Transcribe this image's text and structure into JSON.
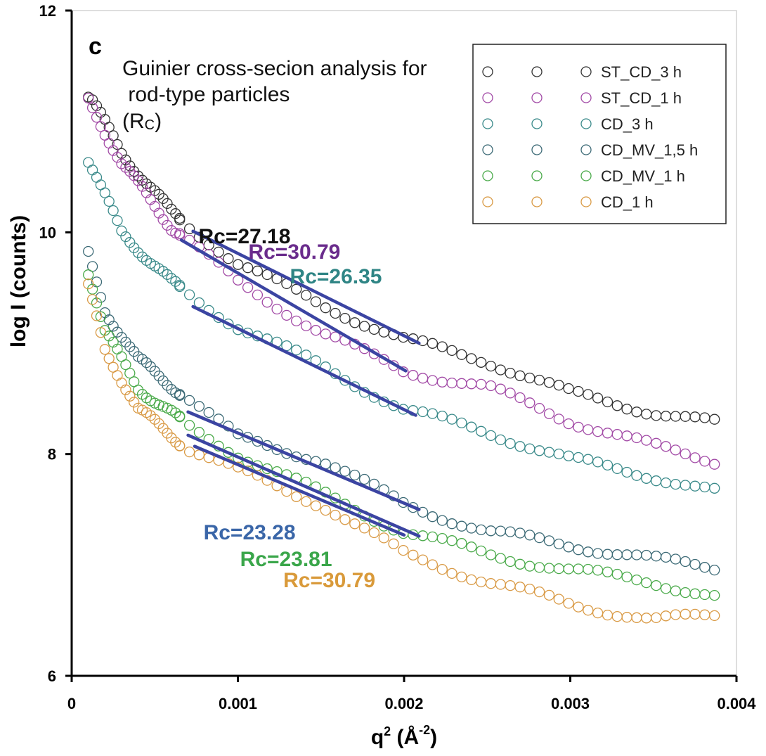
{
  "chart_data": {
    "type": "scatter",
    "panel_label": "c",
    "annotation_lines": [
      "Guinier cross-secion analysis for",
      " rod-type particles",
      "(R",
      "C",
      ")"
    ],
    "xlabel": {
      "base": "q",
      "sup": "2",
      "paren_open": " (",
      "unit": "Å",
      "sup2": "-2",
      "paren_close": ")"
    },
    "ylabel": "log I (counts)",
    "xlim": [
      0,
      0.004
    ],
    "ylim": [
      6,
      12
    ],
    "xticks": [
      0,
      0.001,
      0.002,
      0.003,
      0.004
    ],
    "xtick_labels": [
      "0",
      "0.001",
      "0.002",
      "0.003",
      "0.004"
    ],
    "yticks": [
      6,
      8,
      10,
      12
    ],
    "ytick_labels": [
      "6",
      "8",
      "10",
      "12"
    ],
    "legend_position": "top-right",
    "series": [
      {
        "name": "ST_CD_3 h",
        "color": "#333333",
        "anchors": [
          [
            0.00011,
            11.22
          ],
          [
            0.0003,
            10.72
          ],
          [
            0.0006,
            10.18
          ],
          [
            0.001,
            9.72
          ],
          [
            0.0015,
            9.35
          ],
          [
            0.002,
            9.03
          ],
          [
            0.0025,
            8.84
          ],
          [
            0.003,
            8.55
          ],
          [
            0.0035,
            8.38
          ],
          [
            0.0039,
            8.27
          ]
        ],
        "fit": {
          "x": [
            0.00073,
            0.00209
          ],
          "y": [
            10.01,
            9.0
          ],
          "label": "Rc=27.18",
          "label_color": "#111111"
        }
      },
      {
        "name": "ST_CD_1 h",
        "color": "#a24aa6",
        "anchors": [
          [
            0.0001,
            11.2
          ],
          [
            0.0003,
            10.62
          ],
          [
            0.0006,
            10.05
          ],
          [
            0.001,
            9.55
          ],
          [
            0.0015,
            9.1
          ],
          [
            0.002,
            8.75
          ],
          [
            0.0025,
            8.6
          ],
          [
            0.003,
            8.3
          ],
          [
            0.0035,
            8.07
          ],
          [
            0.0039,
            7.93
          ]
        ],
        "fit": {
          "x": [
            0.00066,
            0.00201
          ],
          "y": [
            9.93,
            8.75
          ],
          "label": "Rc=30.79",
          "label_color": "#6a2c8c"
        }
      },
      {
        "name": "CD_3 h",
        "color": "#3a8a8a",
        "anchors": [
          [
            0.0001,
            10.65
          ],
          [
            0.0003,
            10.0
          ],
          [
            0.0006,
            9.55
          ],
          [
            0.001,
            9.15
          ],
          [
            0.0015,
            8.8
          ],
          [
            0.002,
            8.4
          ],
          [
            0.0025,
            8.2
          ],
          [
            0.003,
            7.95
          ],
          [
            0.0035,
            7.8
          ],
          [
            0.0039,
            7.65
          ]
        ],
        "fit": {
          "x": [
            0.00073,
            0.00207
          ],
          "y": [
            9.33,
            8.35
          ],
          "label": "Rc=26.35",
          "label_color": "#2f8585"
        }
      },
      {
        "name": "CD_MV_1,5 h",
        "color": "#3c6a76",
        "anchors": [
          [
            0.0001,
            9.8
          ],
          [
            0.0002,
            9.3
          ],
          [
            0.0004,
            8.85
          ],
          [
            0.0007,
            8.5
          ],
          [
            0.001,
            8.15
          ],
          [
            0.0015,
            7.95
          ],
          [
            0.002,
            7.55
          ],
          [
            0.0025,
            7.3
          ],
          [
            0.003,
            7.18
          ],
          [
            0.0035,
            7.05
          ],
          [
            0.0039,
            6.97
          ]
        ],
        "fit": {
          "x": [
            0.0007,
            0.00209
          ],
          "y": [
            8.38,
            7.5
          ],
          "label": "Rc=23.28",
          "label_color": "#3a66a8"
        }
      },
      {
        "name": "CD_MV_1 h",
        "color": "#4aaa4a",
        "anchors": [
          [
            0.0001,
            9.65
          ],
          [
            0.0002,
            9.1
          ],
          [
            0.0004,
            8.6
          ],
          [
            0.0007,
            8.25
          ],
          [
            0.001,
            8.0
          ],
          [
            0.0015,
            7.65
          ],
          [
            0.002,
            7.3
          ],
          [
            0.0025,
            7.1
          ],
          [
            0.003,
            6.95
          ],
          [
            0.0035,
            6.85
          ],
          [
            0.0039,
            6.7
          ]
        ],
        "fit": {
          "x": [
            0.0007,
            0.00209
          ],
          "y": [
            8.17,
            7.26
          ],
          "label": "Rc=23.81",
          "label_color": "#3aa64a"
        }
      },
      {
        "name": "CD_1 h",
        "color": "#d99a45",
        "anchors": [
          [
            0.0001,
            9.5
          ],
          [
            0.0002,
            8.95
          ],
          [
            0.0004,
            8.4
          ],
          [
            0.0007,
            8.05
          ],
          [
            0.001,
            7.85
          ],
          [
            0.0015,
            7.55
          ],
          [
            0.002,
            7.1
          ],
          [
            0.0025,
            6.85
          ],
          [
            0.003,
            6.65
          ],
          [
            0.0035,
            6.5
          ],
          [
            0.0039,
            6.55
          ]
        ],
        "fit": {
          "x": [
            0.00074,
            0.002
          ],
          "y": [
            8.07,
            7.27
          ],
          "label": "Rc=30.79",
          "label_color": "#d99a3a"
        }
      }
    ]
  }
}
